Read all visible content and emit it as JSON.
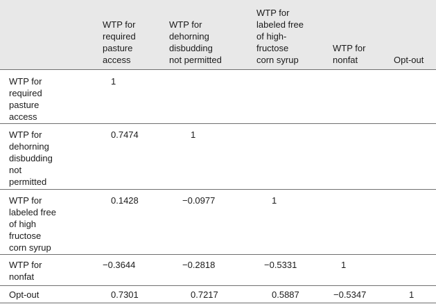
{
  "table": {
    "columns": [
      "WTP for\nrequired\npasture\naccess",
      "WTP for\ndehorning\ndisbudding\nnot permitted",
      "WTP for\nlabeled free\nof high-\nfructose\ncorn syrup",
      "WTP for\nnonfat",
      "Opt-out"
    ],
    "rows": [
      {
        "label": "WTP for\nrequired\npasture\naccess",
        "cells": [
          "1",
          "",
          "",
          "",
          ""
        ]
      },
      {
        "label": "WTP for\ndehorning\ndisbudding\nnot\npermitted",
        "cells": [
          "0.7474",
          "1",
          "",
          "",
          ""
        ]
      },
      {
        "label": "WTP for\nlabeled free\nof high\nfructose\ncorn syrup",
        "cells": [
          "0.1428",
          "−0.0977",
          "1",
          "",
          ""
        ]
      },
      {
        "label": "WTP for\nnonfat",
        "cells": [
          "−0.3644",
          "−0.2818",
          "−0.5331",
          "1",
          ""
        ]
      },
      {
        "label": "Opt-out",
        "cells": [
          "0.7301",
          "0.7217",
          "0.5887",
          "−0.5347",
          "1"
        ]
      }
    ]
  }
}
